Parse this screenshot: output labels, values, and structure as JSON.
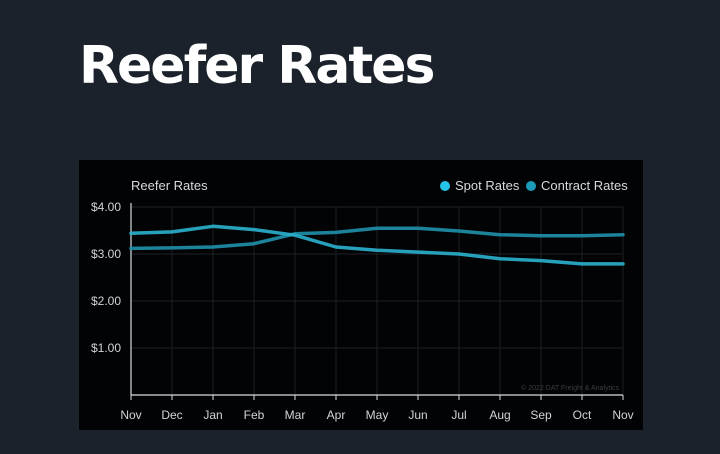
{
  "page": {
    "title": "Reefer Rates"
  },
  "chart_data": {
    "type": "line",
    "title": "Reefer Rates",
    "categories": [
      "Nov",
      "Dec",
      "Jan",
      "Feb",
      "Mar",
      "Apr",
      "May",
      "Jun",
      "Jul",
      "Aug",
      "Sep",
      "Oct",
      "Nov"
    ],
    "series": [
      {
        "name": "Spot Rates",
        "color": "#2aaecb",
        "values": [
          3.44,
          3.47,
          3.59,
          3.52,
          3.4,
          3.15,
          3.08,
          3.04,
          3.0,
          2.9,
          2.86,
          2.79,
          2.79
        ]
      },
      {
        "name": "Contract Rates",
        "color": "#1e8ea8",
        "values": [
          3.12,
          3.13,
          3.15,
          3.22,
          3.43,
          3.46,
          3.55,
          3.55,
          3.49,
          3.41,
          3.39,
          3.39,
          3.41
        ]
      }
    ],
    "y_ticks": [
      "$4.00",
      "$3.00",
      "$2.00",
      "$1.00"
    ],
    "y_tick_values": [
      4,
      3,
      2,
      1
    ],
    "ylim": [
      0,
      4
    ],
    "grid": true,
    "legend_position": "top-right",
    "legend_dot_colors": [
      "#25c4e8",
      "#1c9bb8"
    ],
    "watermark": "© 2022 DAT Freight & Analytics",
    "xlabel": "",
    "ylabel": ""
  }
}
